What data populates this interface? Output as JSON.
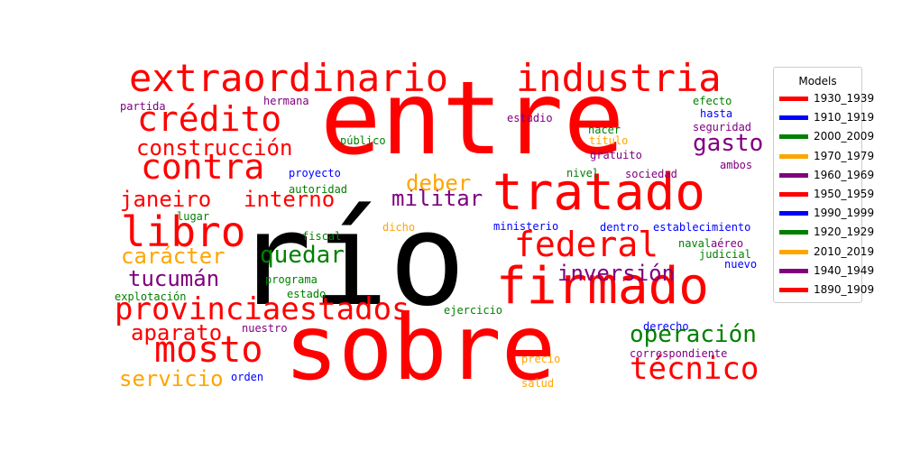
{
  "legend": {
    "title": "Models",
    "items": [
      {
        "label": "1930_1939",
        "color": "#ff0000"
      },
      {
        "label": "1910_1919",
        "color": "#0000ff"
      },
      {
        "label": "2000_2009",
        "color": "#008000"
      },
      {
        "label": "1970_1979",
        "color": "#ffa500"
      },
      {
        "label": "1960_1969",
        "color": "#800080"
      },
      {
        "label": "1950_1959",
        "color": "#ff0000"
      },
      {
        "label": "1990_1999",
        "color": "#0000ff"
      },
      {
        "label": "1920_1929",
        "color": "#008000"
      },
      {
        "label": "2010_2019",
        "color": "#ffa500"
      },
      {
        "label": "1940_1949",
        "color": "#800080"
      },
      {
        "label": "1890_1909",
        "color": "#ff0000"
      }
    ]
  },
  "words": [
    {
      "text": "río",
      "color": "#000000"
    },
    {
      "text": "sobre",
      "color": "#ff0000"
    },
    {
      "text": "entre",
      "color": "#ff0000"
    },
    {
      "text": "tratado",
      "color": "#ff0000"
    },
    {
      "text": "firmado",
      "color": "#ff0000"
    },
    {
      "text": "extraordinario",
      "color": "#ff0000"
    },
    {
      "text": "industria",
      "color": "#ff0000"
    },
    {
      "text": "crédito",
      "color": "#ff0000"
    },
    {
      "text": "contra",
      "color": "#ff0000"
    },
    {
      "text": "libro",
      "color": "#ff0000"
    },
    {
      "text": "federal",
      "color": "#ff0000"
    },
    {
      "text": "mosto",
      "color": "#ff0000"
    },
    {
      "text": "técnico",
      "color": "#ff0000"
    },
    {
      "text": "provinciaestados",
      "color": "#ff0000"
    },
    {
      "text": "construcción",
      "color": "#ff0000"
    },
    {
      "text": "janeiro",
      "color": "#ff0000"
    },
    {
      "text": "interno",
      "color": "#ff0000"
    },
    {
      "text": "aparato",
      "color": "#ff0000"
    },
    {
      "text": "gasto",
      "color": "#800080"
    },
    {
      "text": "militar",
      "color": "#800080"
    },
    {
      "text": "inversión",
      "color": "#800080"
    },
    {
      "text": "tucumán",
      "color": "#800080"
    },
    {
      "text": "quedar",
      "color": "#008000"
    },
    {
      "text": "operación",
      "color": "#008000"
    },
    {
      "text": "deber",
      "color": "#ffa500"
    },
    {
      "text": "carácter",
      "color": "#ffa500"
    },
    {
      "text": "servicio",
      "color": "#ffa500"
    },
    {
      "text": "partida",
      "color": "#800080"
    },
    {
      "text": "hermana",
      "color": "#800080"
    },
    {
      "text": "estudio",
      "color": "#800080"
    },
    {
      "text": "público",
      "color": "#008000"
    },
    {
      "text": "proyecto",
      "color": "#0000ff"
    },
    {
      "text": "autoridad",
      "color": "#008000"
    },
    {
      "text": "hacer",
      "color": "#008000"
    },
    {
      "text": "título",
      "color": "#ffa500"
    },
    {
      "text": "gratuito",
      "color": "#800080"
    },
    {
      "text": "nivel",
      "color": "#008000"
    },
    {
      "text": "sociedad",
      "color": "#800080"
    },
    {
      "text": "efecto",
      "color": "#008000"
    },
    {
      "text": "hasta",
      "color": "#0000ff"
    },
    {
      "text": "seguridad",
      "color": "#800080"
    },
    {
      "text": "ambos",
      "color": "#800080"
    },
    {
      "text": "lugar",
      "color": "#008000"
    },
    {
      "text": "dicho",
      "color": "#ffa500"
    },
    {
      "text": "ministerio",
      "color": "#0000ff"
    },
    {
      "text": "dentro",
      "color": "#0000ff"
    },
    {
      "text": "establecimiento",
      "color": "#0000ff"
    },
    {
      "text": "fiscal",
      "color": "#008000"
    },
    {
      "text": "naval",
      "color": "#008000"
    },
    {
      "text": "aéreo",
      "color": "#800080"
    },
    {
      "text": "judicial",
      "color": "#008000"
    },
    {
      "text": "nuevo",
      "color": "#0000ff"
    },
    {
      "text": "programa",
      "color": "#008000"
    },
    {
      "text": "estado",
      "color": "#008000"
    },
    {
      "text": "explotación",
      "color": "#008000"
    },
    {
      "text": "ejercicio",
      "color": "#008000"
    },
    {
      "text": "nuestro",
      "color": "#800080"
    },
    {
      "text": "derecho",
      "color": "#0000ff"
    },
    {
      "text": "correspondiente",
      "color": "#800080"
    },
    {
      "text": "precio",
      "color": "#ffa500"
    },
    {
      "text": "orden",
      "color": "#0000ff"
    },
    {
      "text": "salud",
      "color": "#ffa500"
    }
  ]
}
